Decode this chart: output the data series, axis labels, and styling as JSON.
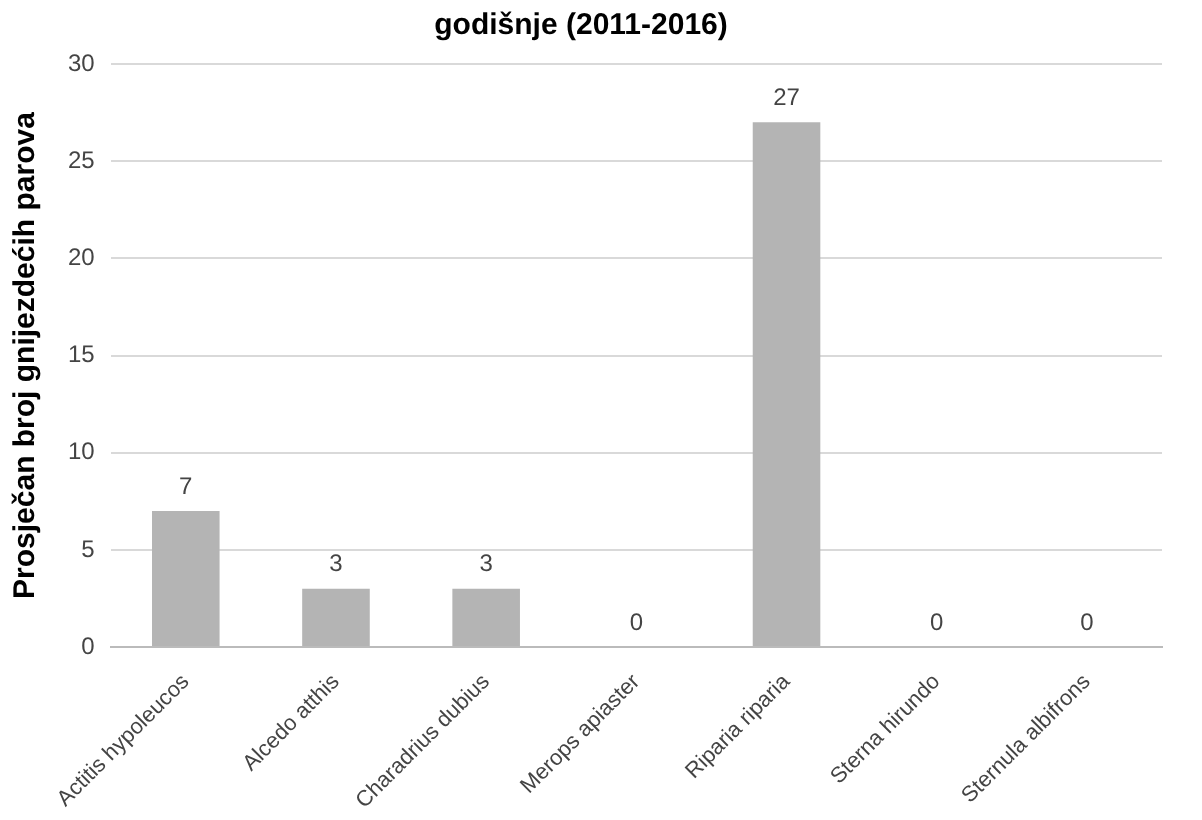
{
  "chart_data": {
    "type": "bar",
    "title": "godišnje (2011-2016)",
    "ylabel": "Prosječan broj gnijezdećih parova",
    "categories": [
      "Actitis hypoleucos",
      "Alcedo atthis",
      "Charadrius dubius",
      "Merops apiaster",
      "Riparia riparia",
      "Sterna hirundo",
      "Sternula albifrons"
    ],
    "values": [
      7,
      3,
      3,
      0,
      27,
      0,
      0
    ],
    "color": "#b4b4b4",
    "ylim": [
      0,
      30
    ],
    "yticks": [
      0,
      5,
      10,
      15,
      20,
      25,
      30
    ],
    "grid": "y",
    "data_labels": true,
    "legend": false
  }
}
